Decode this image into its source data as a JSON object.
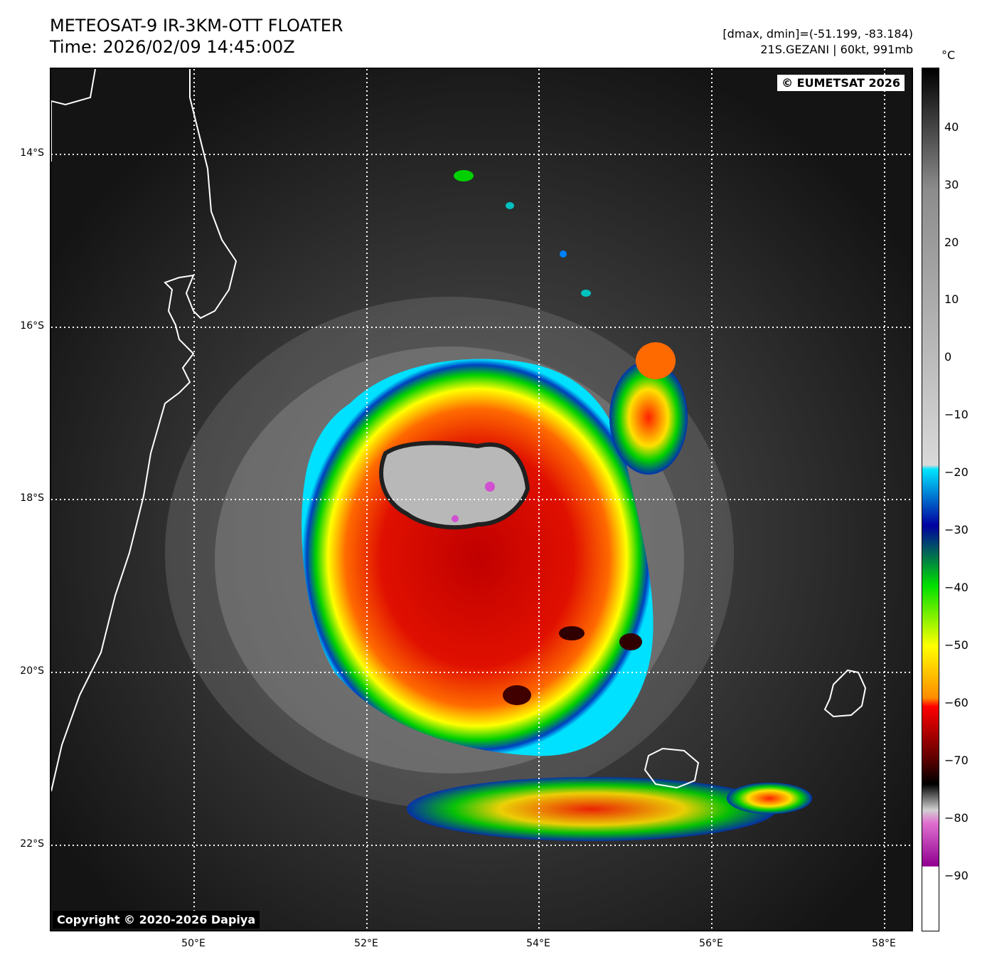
{
  "title_line1": "METEOSAT-9 IR-3KM-OTT FLOATER",
  "title_line2": "Time: 2026/02/09 14:45:00Z",
  "meta_line1": "[dmax, dmin]=(-51.199, -83.184)",
  "meta_line2": "21S.GEZANI | 60kt, 991mb",
  "copyright_top": "© EUMETSAT 2026",
  "copyright_bottom": "Copyright © 2020-2026 Dapiya",
  "colorbar": {
    "unit": "°C",
    "ticks": [
      "40",
      "30",
      "20",
      "10",
      "0",
      "−10",
      "−20",
      "−30",
      "−40",
      "−50",
      "−60",
      "−70",
      "−80",
      "−90"
    ],
    "stops": [
      "#000000",
      "#8c8c8c",
      "#d9d9d9",
      "#00e5ff",
      "#0000a0",
      "#00e000",
      "#ffff00",
      "#ff8c00",
      "#ff0000",
      "#600000",
      "#000000",
      "#d0d0d0",
      "#e070d0",
      "#900090",
      "#ffffff"
    ]
  },
  "lat_labels": [
    "14°S",
    "16°S",
    "18°S",
    "20°S",
    "22°S"
  ],
  "lon_labels": [
    "50°E",
    "52°E",
    "54°E",
    "56°E",
    "58°E"
  ],
  "storm": {
    "name": "21S.GEZANI",
    "wind_kt": 60,
    "pressure_mb": 991,
    "dmax_c": -51.199,
    "dmin_c": -83.184
  }
}
